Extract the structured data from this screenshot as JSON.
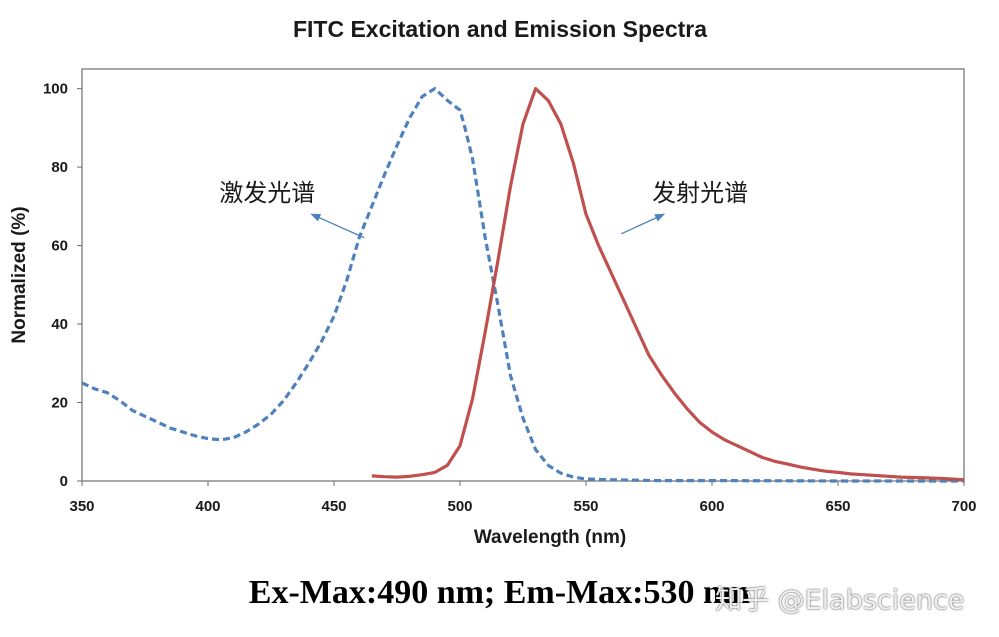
{
  "chart_data": {
    "type": "line",
    "title": "FITC Excitation and Emission Spectra",
    "xlabel": "Wavelength (nm)",
    "ylabel": "Normalized (%)",
    "xlim": [
      350,
      700
    ],
    "ylim": [
      0,
      105
    ],
    "xticks": [
      350,
      400,
      450,
      500,
      550,
      600,
      650,
      700
    ],
    "yticks": [
      0,
      20,
      40,
      60,
      80,
      100
    ],
    "grid": false,
    "series": [
      {
        "name": "激发光谱",
        "style": "dashed",
        "color": "#4f81bd",
        "x": [
          350,
          355,
          360,
          365,
          370,
          375,
          380,
          385,
          390,
          395,
          400,
          405,
          410,
          415,
          420,
          425,
          430,
          435,
          440,
          445,
          450,
          455,
          460,
          465,
          470,
          475,
          480,
          485,
          490,
          495,
          500,
          502,
          505,
          510,
          515,
          520,
          525,
          530,
          535,
          540,
          545,
          550,
          560,
          570,
          580,
          600,
          650,
          700
        ],
        "y": [
          25,
          23.5,
          22.5,
          20.5,
          18,
          16.5,
          15,
          13.5,
          12.5,
          11.5,
          10.8,
          10.5,
          11,
          12.5,
          14.5,
          17,
          20.5,
          25,
          30,
          35.5,
          42,
          51,
          62,
          70,
          78,
          85.5,
          92.5,
          98,
          100,
          97,
          94.5,
          90,
          82,
          62,
          45,
          27,
          16,
          8,
          4,
          2,
          1,
          0.5,
          0.3,
          0.2,
          0.1,
          0.1,
          0,
          0
        ]
      },
      {
        "name": "发射光谱",
        "style": "solid",
        "color": "#c0504d",
        "x": [
          465,
          470,
          475,
          480,
          485,
          490,
          495,
          500,
          505,
          510,
          515,
          520,
          525,
          530,
          535,
          540,
          545,
          550,
          555,
          560,
          565,
          570,
          575,
          580,
          585,
          590,
          595,
          600,
          605,
          610,
          615,
          620,
          625,
          630,
          635,
          640,
          645,
          650,
          655,
          660,
          665,
          670,
          675,
          680,
          685,
          690,
          695,
          700
        ],
        "y": [
          1.3,
          1.1,
          1,
          1.2,
          1.6,
          2.2,
          4,
          9,
          21,
          38,
          56,
          75,
          91,
          100,
          97,
          91,
          81,
          68,
          60,
          53,
          46,
          39,
          32,
          27,
          22.5,
          18.5,
          15,
          12.5,
          10.5,
          9,
          7.5,
          6,
          5,
          4.3,
          3.6,
          3,
          2.5,
          2.2,
          1.8,
          1.6,
          1.4,
          1.2,
          1,
          0.9,
          0.8,
          0.7,
          0.5,
          0.3
        ]
      }
    ],
    "annotations": [
      {
        "text": "激发光谱",
        "arrow_from": [
          462,
          62
        ],
        "arrow_to": [
          441,
          68
        ]
      },
      {
        "text": "发射光谱",
        "arrow_from": [
          564,
          63
        ],
        "arrow_to": [
          581,
          68
        ]
      }
    ]
  },
  "caption": "Ex-Max:490 nm; Em-Max:530 nm",
  "watermark": "知乎 @Elabscience"
}
